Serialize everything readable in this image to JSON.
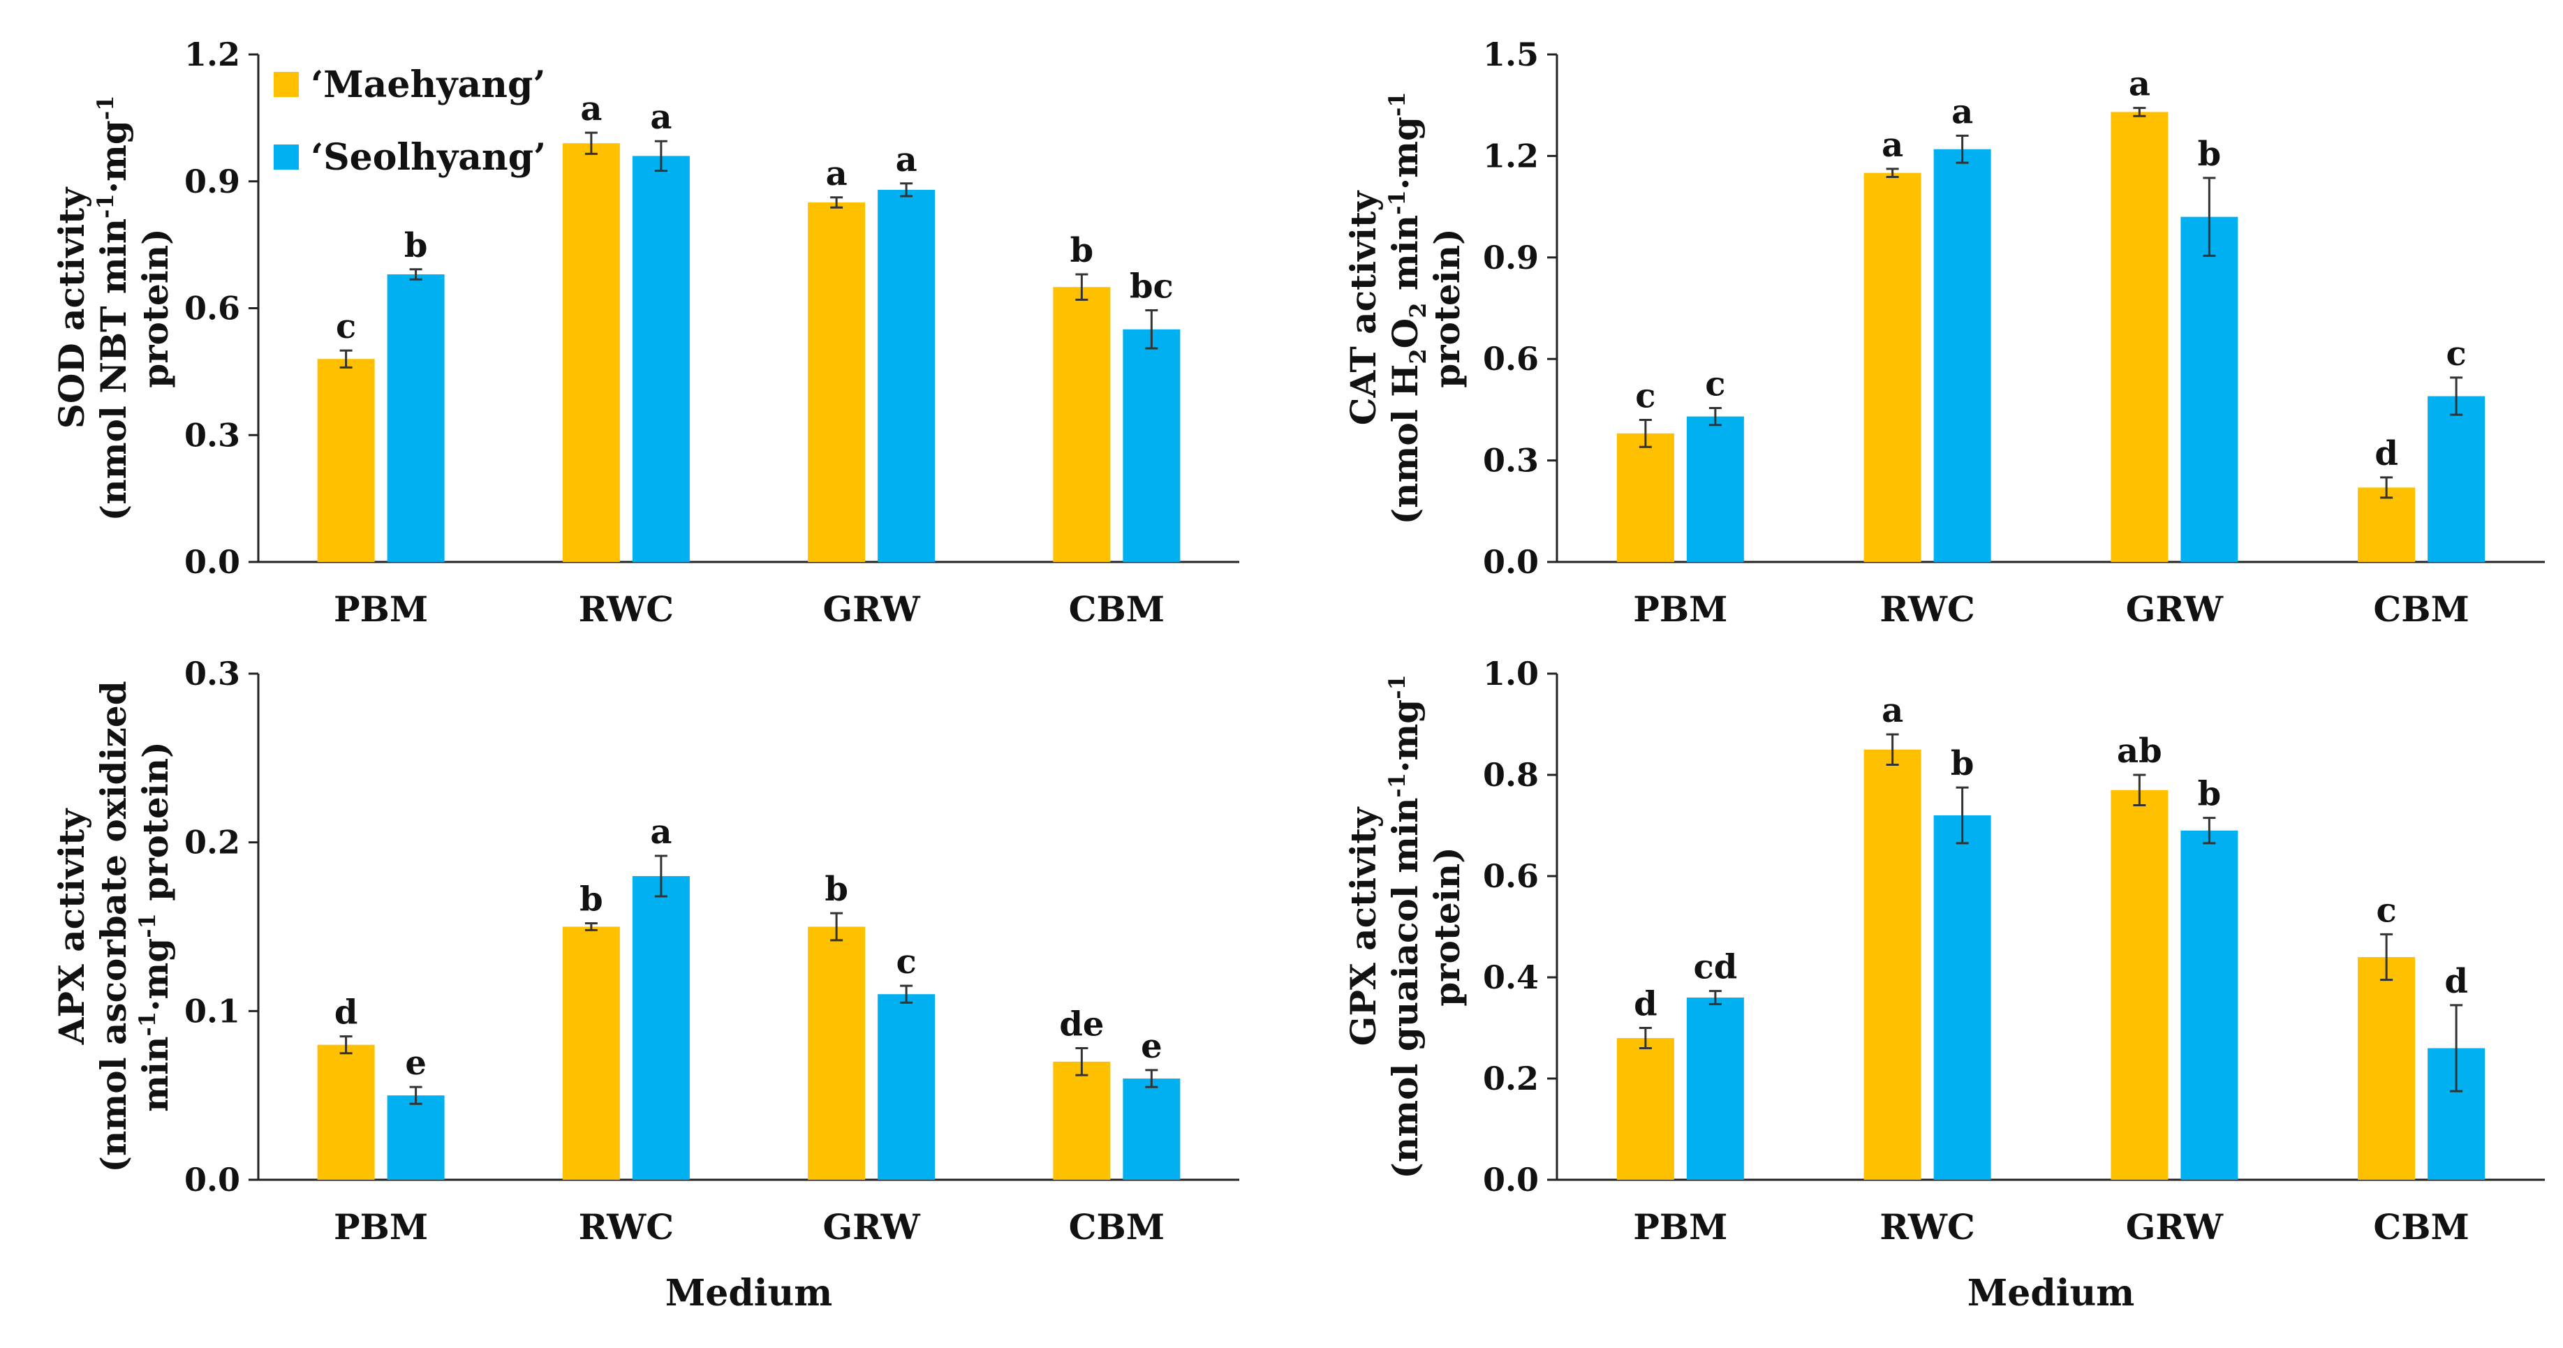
{
  "colors": {
    "series_0": "#FFC000",
    "series_1": "#00B0F0",
    "axis": "#222222",
    "error": "#333333"
  },
  "legend": {
    "entries": [
      "‘Maehyang’",
      "‘Seolhyang’"
    ]
  },
  "chart_data": [
    {
      "type": "bar",
      "categories": [
        "PBM",
        "RWC",
        "GRW",
        "CBM"
      ],
      "ylabel": "SOD activity (nmol NBT min-1·mg-1 protein)",
      "ylabel_lines": [
        [
          {
            "t": "SOD activity"
          }
        ],
        [
          {
            "t": "(nmol NBT min"
          },
          {
            "t": "-1",
            "s": "sup"
          },
          {
            "t": "·mg"
          },
          {
            "t": "-1",
            "s": "sup"
          }
        ],
        [
          {
            "t": "protein)"
          }
        ]
      ],
      "xlabel": "",
      "ylim": [
        0,
        1.2
      ],
      "yticks": [
        "0.0",
        "0.3",
        "0.6",
        "0.9",
        "1.2"
      ],
      "series": [
        {
          "name": "‘Maehyang’",
          "values": [
            0.48,
            0.99,
            0.85,
            0.65
          ],
          "errors": [
            0.02,
            0.025,
            0.012,
            0.03
          ],
          "letters": [
            "c",
            "a",
            "a",
            "b"
          ]
        },
        {
          "name": "‘Seolhyang’",
          "values": [
            0.68,
            0.96,
            0.88,
            0.55
          ],
          "errors": [
            0.012,
            0.035,
            0.015,
            0.045
          ],
          "letters": [
            "b",
            "a",
            "a",
            "bc"
          ]
        }
      ]
    },
    {
      "type": "bar",
      "categories": [
        "PBM",
        "RWC",
        "GRW",
        "CBM"
      ],
      "ylabel": "CAT activity (nmol H2O2 min-1·mg-1 protein)",
      "ylabel_lines": [
        [
          {
            "t": "CAT activity"
          }
        ],
        [
          {
            "t": "(nmol H"
          },
          {
            "t": "2",
            "s": "sub"
          },
          {
            "t": "O"
          },
          {
            "t": "2",
            "s": "sub"
          },
          {
            "t": " min"
          },
          {
            "t": "-1",
            "s": "sup"
          },
          {
            "t": "·mg"
          },
          {
            "t": "-1",
            "s": "sup"
          }
        ],
        [
          {
            "t": "protein)"
          }
        ]
      ],
      "xlabel": "",
      "ylim": [
        0,
        1.5
      ],
      "yticks": [
        "0.0",
        "0.3",
        "0.6",
        "0.9",
        "1.2",
        "1.5"
      ],
      "series": [
        {
          "name": "‘Maehyang’",
          "values": [
            0.38,
            1.15,
            1.33,
            0.22
          ],
          "errors": [
            0.04,
            0.012,
            0.012,
            0.03
          ],
          "letters": [
            "c",
            "a",
            "a",
            "d"
          ]
        },
        {
          "name": "‘Seolhyang’",
          "values": [
            0.43,
            1.22,
            1.02,
            0.49
          ],
          "errors": [
            0.025,
            0.04,
            0.115,
            0.055
          ],
          "letters": [
            "c",
            "a",
            "b",
            "c"
          ]
        }
      ]
    },
    {
      "type": "bar",
      "categories": [
        "PBM",
        "RWC",
        "GRW",
        "CBM"
      ],
      "ylabel": "APX activity (nmol ascorbate oxidized min-1·mg-1 protein)",
      "ylabel_lines": [
        [
          {
            "t": "APX activity"
          }
        ],
        [
          {
            "t": "(nmol ascorbate oxidized"
          }
        ],
        [
          {
            "t": "min"
          },
          {
            "t": "-1",
            "s": "sup"
          },
          {
            "t": "·mg"
          },
          {
            "t": "-1",
            "s": "sup"
          },
          {
            "t": " protein)"
          }
        ]
      ],
      "xlabel": "Medium",
      "ylim": [
        0,
        0.3
      ],
      "yticks": [
        "0.0",
        "0.1",
        "0.2",
        "0.3"
      ],
      "series": [
        {
          "name": "‘Maehyang’",
          "values": [
            0.08,
            0.15,
            0.15,
            0.07
          ],
          "errors": [
            0.005,
            0.002,
            0.008,
            0.008
          ],
          "letters": [
            "d",
            "b",
            "b",
            "de"
          ]
        },
        {
          "name": "‘Seolhyang’",
          "values": [
            0.05,
            0.18,
            0.11,
            0.06
          ],
          "errors": [
            0.005,
            0.012,
            0.005,
            0.005
          ],
          "letters": [
            "e",
            "a",
            "c",
            "e"
          ]
        }
      ]
    },
    {
      "type": "bar",
      "categories": [
        "PBM",
        "RWC",
        "GRW",
        "CBM"
      ],
      "ylabel": "GPX activity (nmol guaiacol min-1·mg-1 protein)",
      "ylabel_lines": [
        [
          {
            "t": "GPX activity"
          }
        ],
        [
          {
            "t": "(nmol guaiacol min"
          },
          {
            "t": "-1",
            "s": "sup"
          },
          {
            "t": "·mg"
          },
          {
            "t": "-1",
            "s": "sup"
          }
        ],
        [
          {
            "t": "protein)"
          }
        ]
      ],
      "xlabel": "Medium",
      "ylim": [
        0,
        1.0
      ],
      "yticks": [
        "0.0",
        "0.2",
        "0.4",
        "0.6",
        "0.8",
        "1.0"
      ],
      "series": [
        {
          "name": "‘Maehyang’",
          "values": [
            0.28,
            0.85,
            0.77,
            0.44
          ],
          "errors": [
            0.02,
            0.03,
            0.03,
            0.045
          ],
          "letters": [
            "d",
            "a",
            "ab",
            "c"
          ]
        },
        {
          "name": "‘Seolhyang’",
          "values": [
            0.36,
            0.72,
            0.69,
            0.26
          ],
          "errors": [
            0.013,
            0.055,
            0.025,
            0.085
          ],
          "letters": [
            "cd",
            "b",
            "b",
            "d"
          ]
        }
      ]
    }
  ]
}
